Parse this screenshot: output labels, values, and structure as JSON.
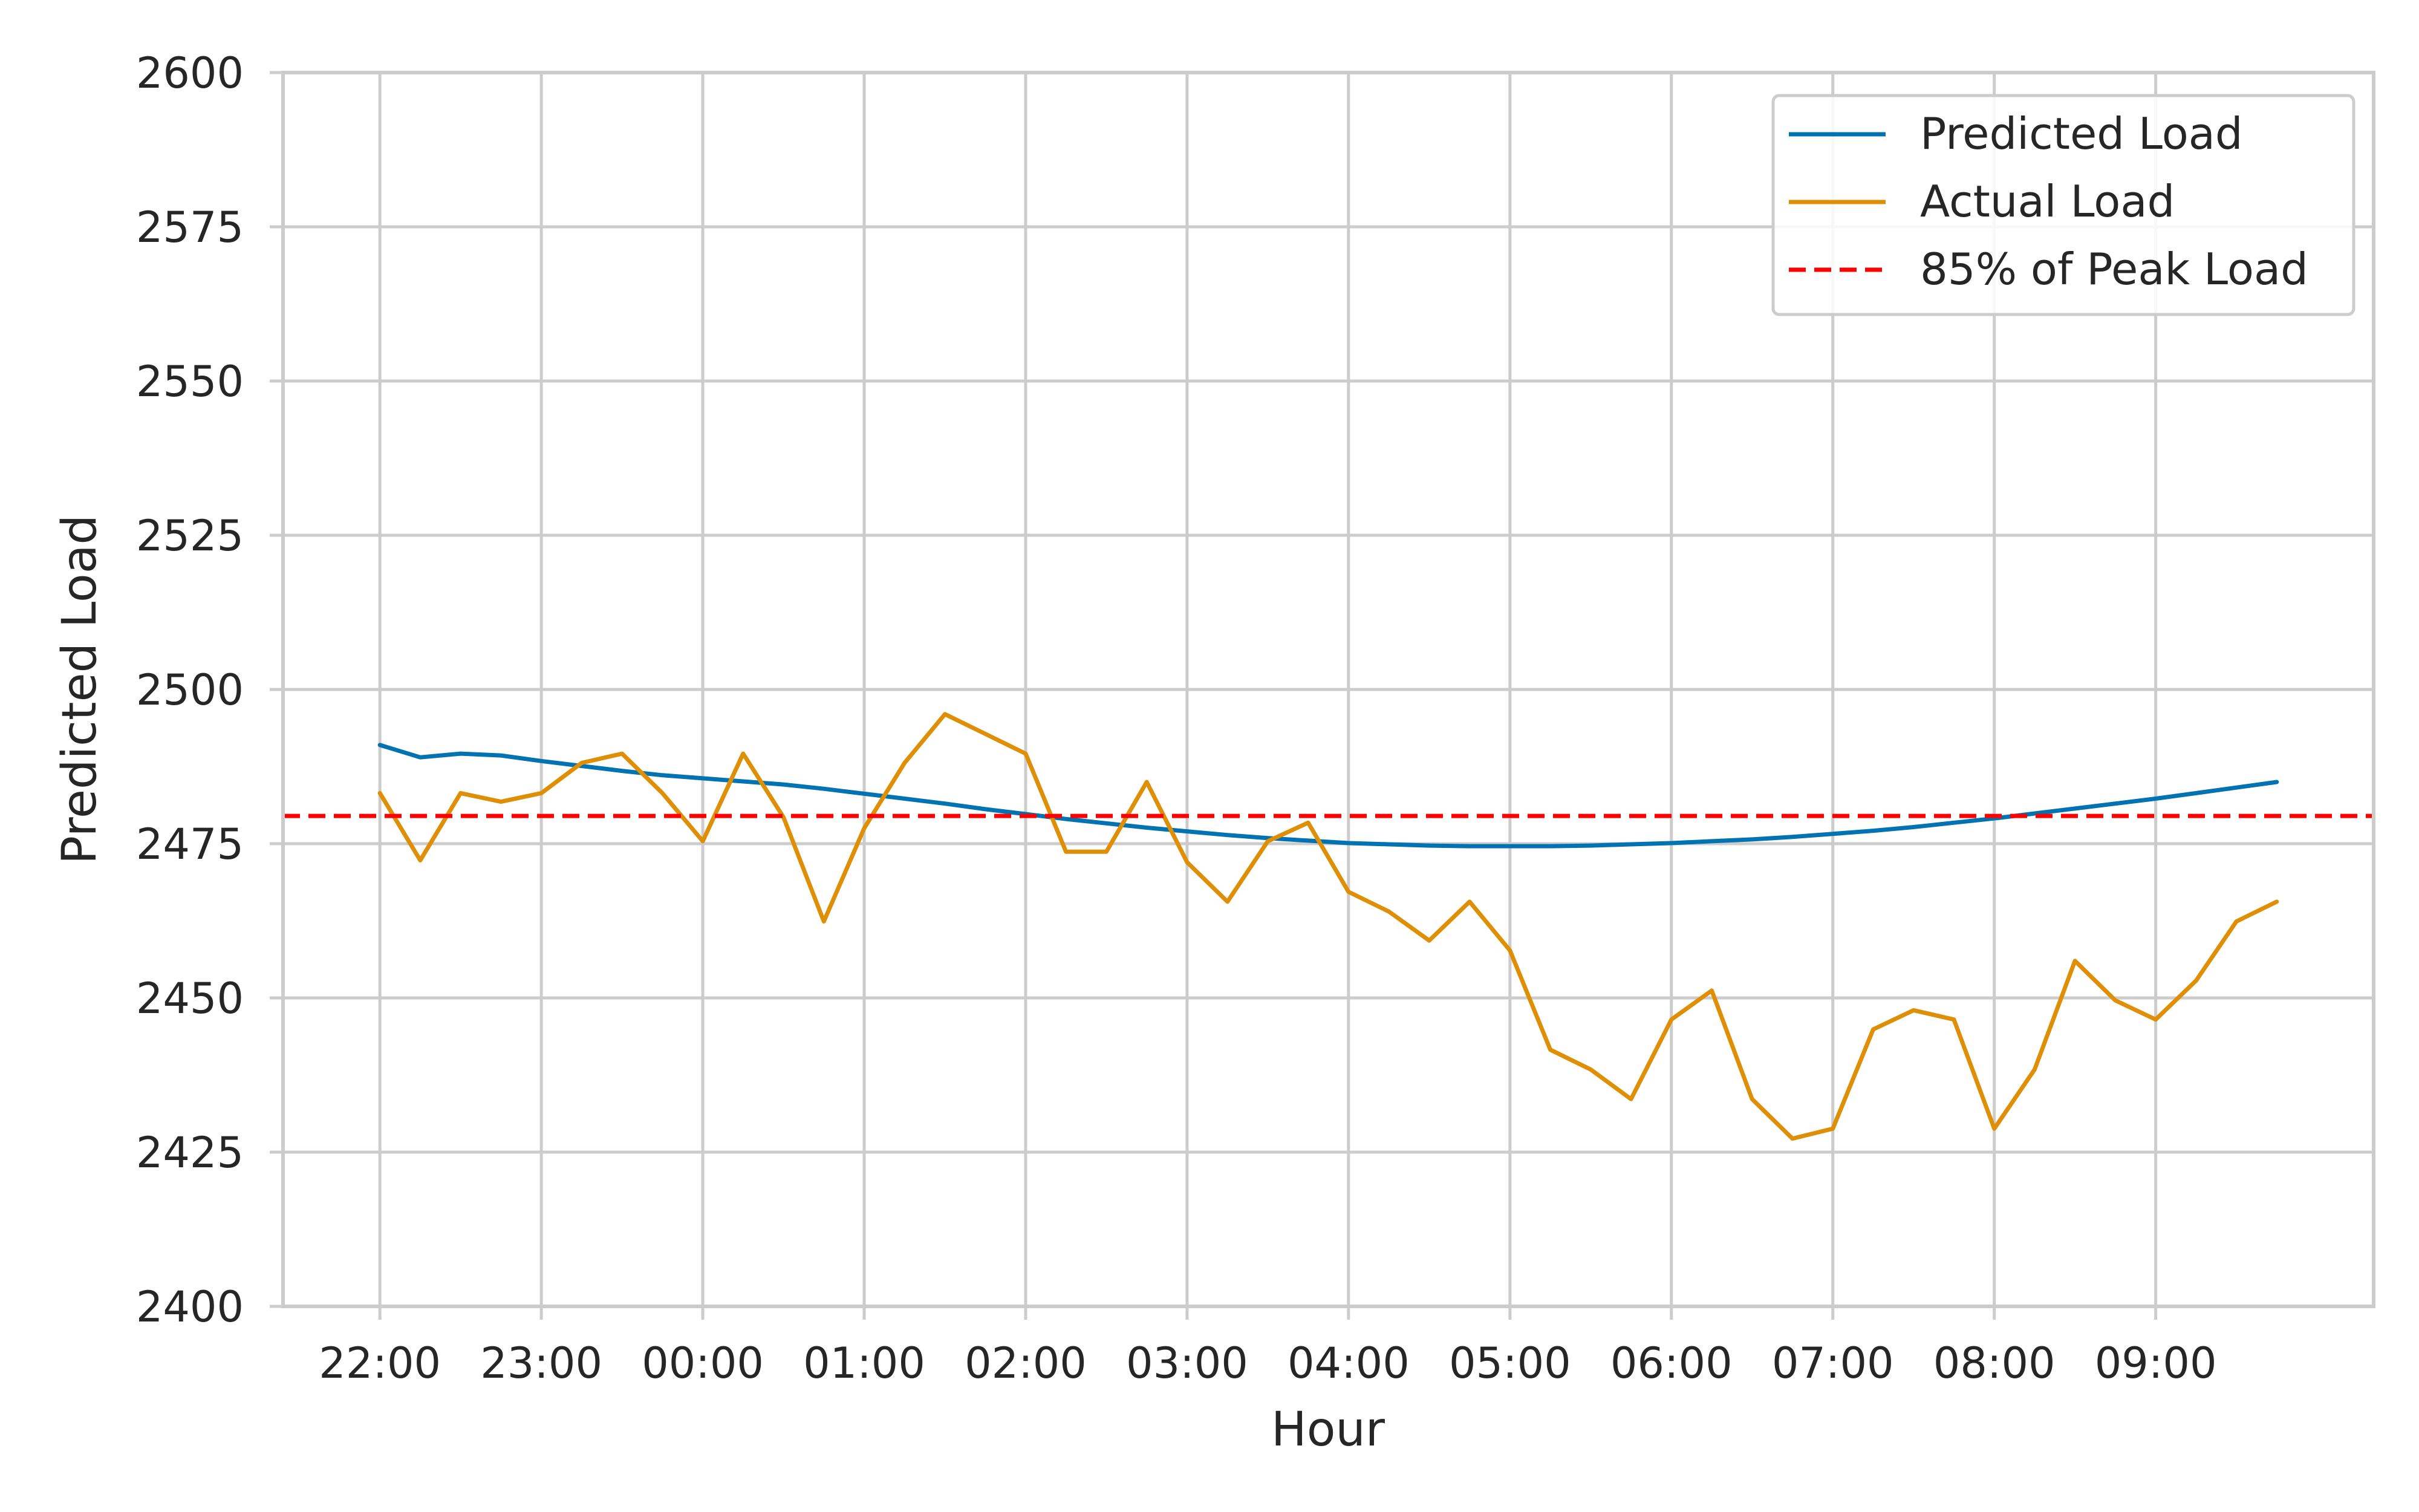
{
  "chart_data": {
    "type": "line",
    "xlabel": "Hour",
    "ylabel": "Predicted Load",
    "ylim": [
      2400,
      2600
    ],
    "xlim_hours": [
      -0.6,
      12.35
    ],
    "y_ticks": [
      2400,
      2425,
      2450,
      2475,
      2500,
      2525,
      2550,
      2575,
      2600
    ],
    "x_tick_labels": [
      "22:00",
      "23:00",
      "00:00",
      "01:00",
      "02:00",
      "03:00",
      "04:00",
      "05:00",
      "06:00",
      "07:00",
      "08:00",
      "09:00"
    ],
    "grid": true,
    "legend_position": "top-right",
    "series": [
      {
        "name": "Predicted Load",
        "color": "#0173b2",
        "style": "solid",
        "x": [
          0,
          0.25,
          0.5,
          0.75,
          1,
          1.25,
          1.5,
          1.75,
          2,
          2.25,
          2.5,
          2.75,
          3,
          3.25,
          3.5,
          3.75,
          4,
          4.25,
          4.5,
          4.75,
          5,
          5.25,
          5.5,
          5.75,
          6,
          6.25,
          6.5,
          6.75,
          7,
          7.25,
          7.5,
          7.75,
          8,
          8.25,
          8.5,
          8.75,
          9,
          9.25,
          9.5,
          9.75,
          10,
          10.25,
          10.5,
          10.75,
          11,
          11.25,
          11.5,
          11.75
        ],
        "values": [
          2491.0,
          2489.0,
          2489.6,
          2489.3,
          2488.4,
          2487.6,
          2486.8,
          2486.1,
          2485.6,
          2485.1,
          2484.6,
          2483.9,
          2483.1,
          2482.3,
          2481.5,
          2480.6,
          2479.8,
          2479.0,
          2478.3,
          2477.6,
          2477.0,
          2476.4,
          2475.9,
          2475.5,
          2475.1,
          2474.9,
          2474.7,
          2474.6,
          2474.6,
          2474.6,
          2474.7,
          2474.9,
          2475.1,
          2475.4,
          2475.7,
          2476.1,
          2476.6,
          2477.1,
          2477.7,
          2478.4,
          2479.1,
          2479.9,
          2480.7,
          2481.5,
          2482.3,
          2483.2,
          2484.1,
          2485.0
        ]
      },
      {
        "name": "Actual Load",
        "color": "#de8f05",
        "style": "solid",
        "x": [
          0,
          0.25,
          0.5,
          0.75,
          1,
          1.25,
          1.5,
          1.75,
          2,
          2.25,
          2.5,
          2.75,
          3,
          3.25,
          3.5,
          3.75,
          4,
          4.25,
          4.5,
          4.75,
          5,
          5.25,
          5.5,
          5.75,
          6,
          6.25,
          6.5,
          6.75,
          7,
          7.25,
          7.5,
          7.75,
          8,
          8.25,
          8.5,
          8.75,
          9,
          9.25,
          9.5,
          9.75,
          10,
          10.25,
          10.5,
          10.75,
          11,
          11.25,
          11.5,
          11.75
        ],
        "values": [
          2483.2,
          2472.3,
          2483.2,
          2481.8,
          2483.2,
          2488.1,
          2489.6,
          2483.2,
          2475.4,
          2489.6,
          2479.3,
          2462.4,
          2477.5,
          2488.1,
          2496.0,
          2492.8,
          2489.6,
          2473.7,
          2473.7,
          2485.0,
          2472.0,
          2465.6,
          2475.4,
          2478.4,
          2467.2,
          2464.0,
          2459.3,
          2465.6,
          2457.7,
          2441.6,
          2438.4,
          2433.6,
          2446.5,
          2451.2,
          2433.6,
          2427.2,
          2428.8,
          2444.9,
          2448.0,
          2446.5,
          2428.8,
          2438.4,
          2456.0,
          2449.6,
          2446.5,
          2452.8,
          2462.4,
          2465.6
        ]
      },
      {
        "name": "85% of Peak Load",
        "color": "#ff0000",
        "style": "dashed",
        "constant": 2479.5
      }
    ]
  }
}
